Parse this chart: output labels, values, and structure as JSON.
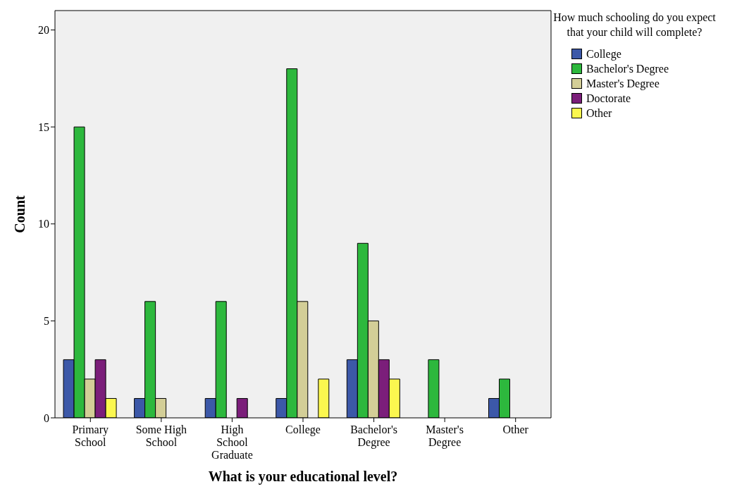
{
  "chart_data": {
    "type": "bar",
    "xlabel": "What is your educational level?",
    "ylabel": "Count",
    "legend_title": "How much schooling do you expect that your child will complete?",
    "categories": [
      "Primary School",
      "Some High School",
      "High School Graduate",
      "College",
      "Bachelor's Degree",
      "Master's Degree",
      "Other"
    ],
    "series": [
      {
        "name": "College",
        "color": "#3c58a8",
        "values": [
          3,
          1,
          1,
          1,
          3,
          null,
          1
        ]
      },
      {
        "name": "Bachelor's Degree",
        "color": "#2db83d",
        "values": [
          15,
          6,
          6,
          18,
          9,
          3,
          2
        ]
      },
      {
        "name": "Master's Degree",
        "color": "#d3ce97",
        "values": [
          2,
          1,
          null,
          6,
          5,
          null,
          null
        ]
      },
      {
        "name": "Doctorate",
        "color": "#7b1e7a",
        "values": [
          3,
          null,
          1,
          null,
          3,
          null,
          null
        ]
      },
      {
        "name": "Other",
        "color": "#fbf74f",
        "values": [
          1,
          null,
          null,
          2,
          2,
          null,
          null
        ]
      }
    ],
    "ylim": [
      0,
      21
    ],
    "yticks": [
      0,
      5,
      10,
      15,
      20
    ],
    "grid": false,
    "legend": "top right"
  }
}
